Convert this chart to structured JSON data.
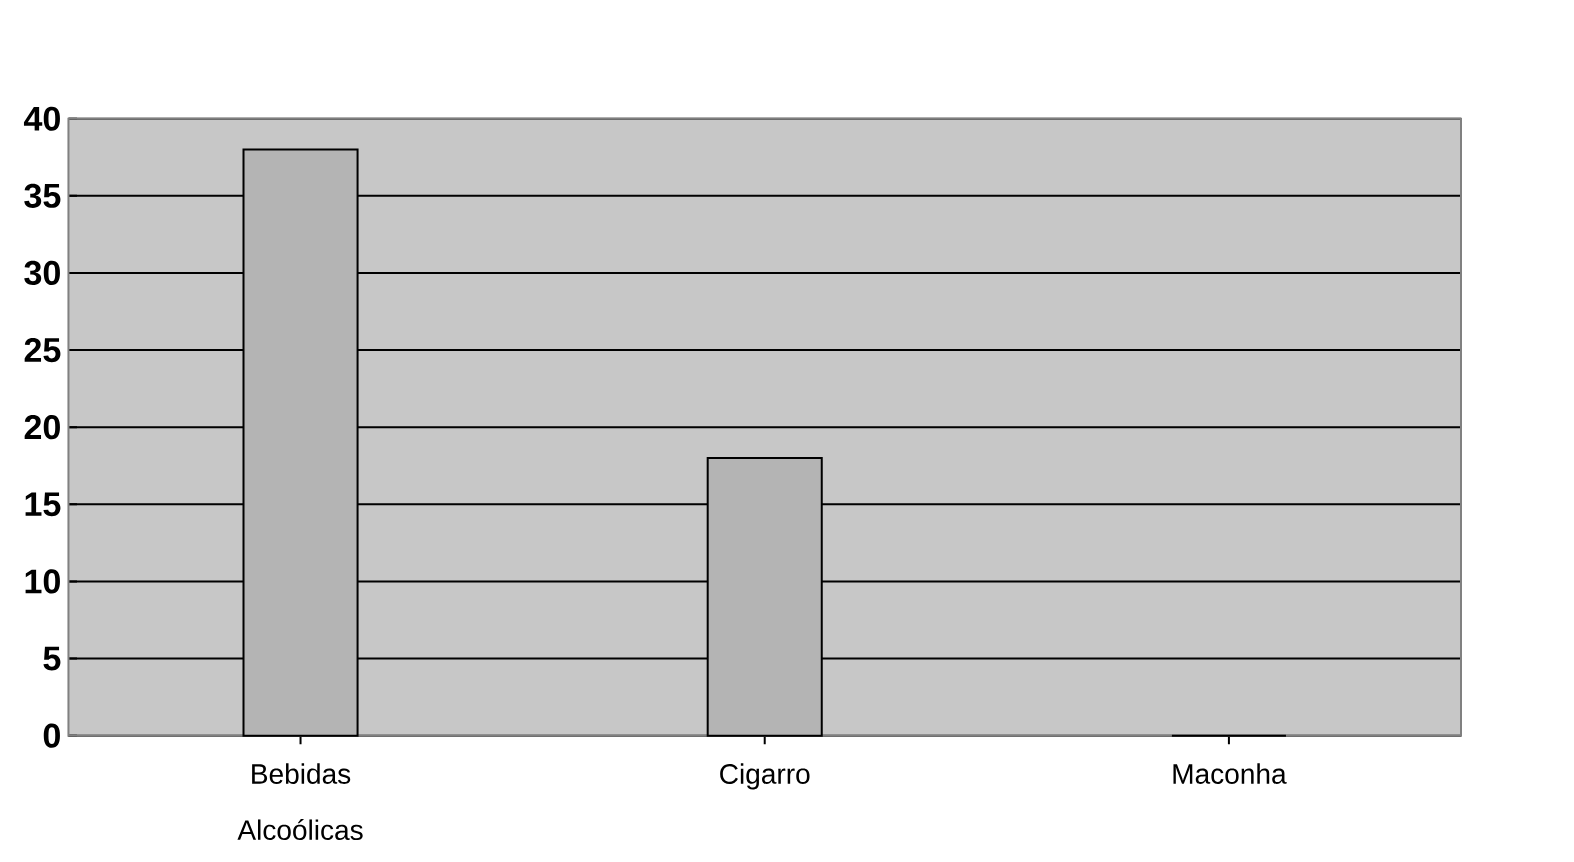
{
  "chart_data": {
    "type": "bar",
    "categories": [
      "Bebidas Alcoólicas",
      "Cigarro",
      "Maconha"
    ],
    "values": [
      38,
      18,
      0
    ],
    "color": "#b4b4b4",
    "ylim": [
      0,
      40
    ],
    "yticks": [
      0,
      5,
      10,
      15,
      20,
      25,
      30,
      35,
      40
    ],
    "grid": "y"
  }
}
